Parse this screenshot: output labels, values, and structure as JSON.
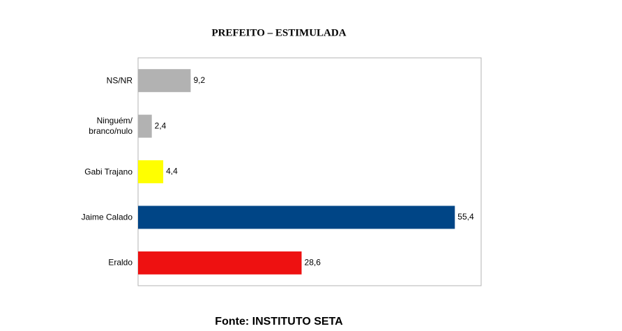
{
  "chart_data": {
    "type": "hbar",
    "title": "PREFEITO – ESTIMULADA",
    "categories": [
      "NS/NR",
      "Ninguém/ branco/nulo",
      "Gabi Trajano",
      "Jaime Calado",
      "Eraldo"
    ],
    "values": [
      9.2,
      2.4,
      4.4,
      55.4,
      28.6
    ],
    "value_labels": [
      "9,2",
      "2,4",
      "4,4",
      "55,4",
      "28,6"
    ],
    "colors": [
      "#b2b2b2",
      "#b2b2b2",
      "#ffff00",
      "#004586",
      "#ee1111"
    ],
    "xlim": [
      0,
      60
    ],
    "source": "Fonte: INSTITUTO SETA"
  }
}
